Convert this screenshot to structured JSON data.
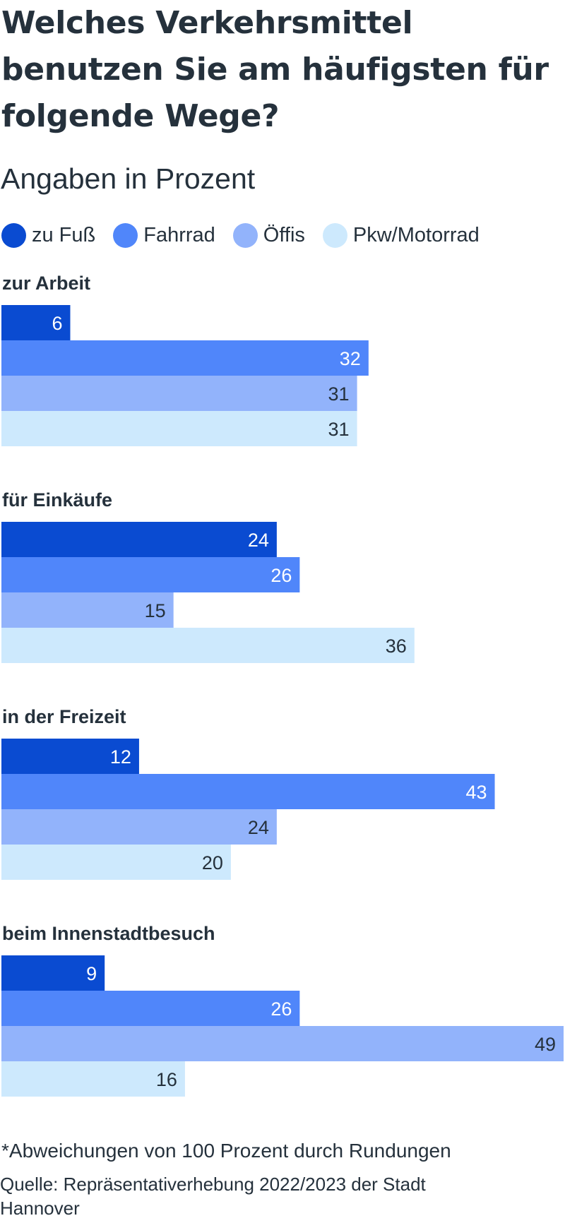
{
  "title": "Welches Verkehrsmittel benutzen Sie am häufigsten für folgende Wege?",
  "subtitle": "Angaben in Prozent",
  "legend": [
    {
      "label": "zu Fuß",
      "color": "#0a4bd1"
    },
    {
      "label": "Fahrrad",
      "color": "#5086fa"
    },
    {
      "label": "Öffis",
      "color": "#92b3fb"
    },
    {
      "label": "Pkw/Motorrad",
      "color": "#cde9fd"
    }
  ],
  "chart_data": {
    "type": "bar",
    "orientation": "horizontal",
    "title": "Welches Verkehrsmittel benutzen Sie am häufigsten für folgende Wege?",
    "subtitle": "Angaben in Prozent",
    "categories": [
      "zur Arbeit",
      "für Einkäufe",
      "in der Freizeit",
      "beim Innenstadtbesuch"
    ],
    "series": [
      {
        "name": "zu Fuß",
        "color": "#0a4bd1",
        "label_color": "#ffffff",
        "values": [
          6,
          24,
          12,
          9
        ]
      },
      {
        "name": "Fahrrad",
        "color": "#5086fa",
        "label_color": "#ffffff",
        "values": [
          32,
          26,
          43,
          26
        ]
      },
      {
        "name": "Öffis",
        "color": "#92b3fb",
        "label_color": "#25313c",
        "values": [
          31,
          15,
          24,
          49
        ]
      },
      {
        "name": "Pkw/Motorrad",
        "color": "#cde9fd",
        "label_color": "#25313c",
        "values": [
          31,
          36,
          20,
          16
        ]
      }
    ],
    "xlim": [
      0,
      49
    ],
    "grid": false,
    "legend_position": "top-left",
    "data_labels": "inside-end"
  },
  "footnote": "*Abweichungen von 100 Prozent durch Rundungen",
  "source": "Quelle: Repräsentativerhebung 2022/2023 der Stadt Hannover"
}
